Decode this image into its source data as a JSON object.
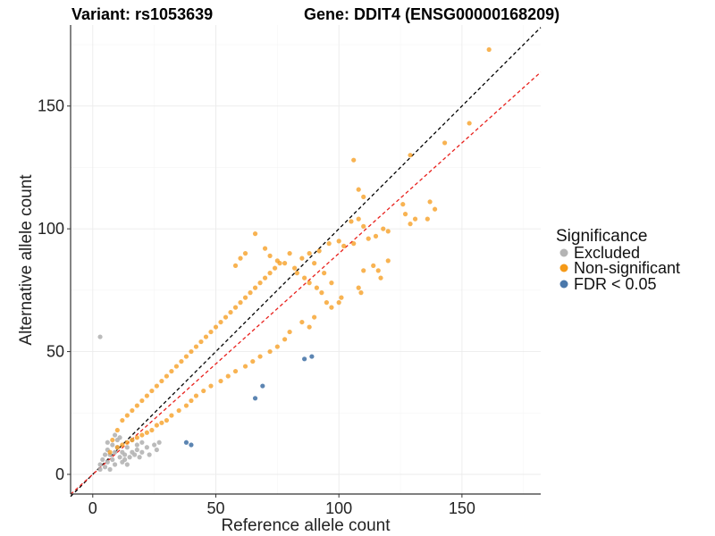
{
  "chart_data": {
    "type": "scatter",
    "title_variant": "Variant: rs1053639",
    "title_gene": "Gene: DDIT4 (ENSG00000168209)",
    "xlabel": "Reference allele count",
    "ylabel": "Alternative allele count",
    "xlim": [
      -9,
      182
    ],
    "ylim": [
      -8,
      183
    ],
    "x_ticks": [
      0,
      50,
      100,
      150
    ],
    "y_ticks": [
      0,
      50,
      100,
      150
    ],
    "legend": {
      "title": "Significance",
      "entries": [
        {
          "label": "Excluded",
          "color": "#b4b4b4"
        },
        {
          "label": "Non-significant",
          "color": "#f59a18"
        },
        {
          "label": "FDR < 0.05",
          "color": "#4a78aa"
        }
      ]
    },
    "reference_lines": [
      {
        "name": "identity",
        "slope": 1.0,
        "intercept": 0,
        "color": "#000000"
      },
      {
        "name": "fit",
        "slope": 0.9,
        "intercept": 0,
        "color": "#e8201c"
      }
    ],
    "series": [
      {
        "name": "Excluded",
        "color": "#b4b4b4",
        "points": [
          [
            3,
            56
          ],
          [
            3,
            2
          ],
          [
            3,
            4
          ],
          [
            4,
            6
          ],
          [
            5,
            3
          ],
          [
            5,
            8
          ],
          [
            6,
            10
          ],
          [
            6,
            5
          ],
          [
            7,
            2
          ],
          [
            7,
            8
          ],
          [
            8,
            12
          ],
          [
            8,
            6
          ],
          [
            9,
            4
          ],
          [
            9,
            9
          ],
          [
            10,
            14
          ],
          [
            10,
            11
          ],
          [
            11,
            7
          ],
          [
            12,
            5
          ],
          [
            12,
            9
          ],
          [
            13,
            8
          ],
          [
            14,
            11
          ],
          [
            15,
            7
          ],
          [
            16,
            9
          ],
          [
            17,
            8
          ],
          [
            18,
            10
          ],
          [
            19,
            7
          ],
          [
            20,
            9
          ],
          [
            22,
            11
          ],
          [
            23,
            8
          ],
          [
            25,
            12
          ],
          [
            26,
            10
          ],
          [
            27,
            13
          ],
          [
            9,
            16
          ],
          [
            11,
            15
          ],
          [
            14,
            4
          ],
          [
            16,
            14
          ],
          [
            6,
            13
          ],
          [
            20,
            13
          ],
          [
            13,
            6
          ],
          [
            18,
            12
          ]
        ]
      },
      {
        "name": "FDR < 0.05",
        "color": "#4a78aa",
        "points": [
          [
            38,
            13
          ],
          [
            40,
            12
          ],
          [
            66,
            31
          ],
          [
            69,
            36
          ],
          [
            86,
            47
          ],
          [
            89,
            48
          ]
        ]
      },
      {
        "name": "Non-significant",
        "color": "#f59a18",
        "points": [
          [
            161,
            173
          ],
          [
            153,
            143
          ],
          [
            143,
            135
          ],
          [
            129,
            130
          ],
          [
            106,
            128
          ],
          [
            110,
            113
          ],
          [
            108,
            116
          ],
          [
            126,
            110
          ],
          [
            127,
            106
          ],
          [
            137,
            111
          ],
          [
            139,
            108
          ],
          [
            131,
            104
          ],
          [
            129,
            102
          ],
          [
            136,
            104
          ],
          [
            105,
            103
          ],
          [
            108,
            104
          ],
          [
            110,
            101
          ],
          [
            118,
            100
          ],
          [
            120,
            99
          ],
          [
            115,
            97
          ],
          [
            112,
            96
          ],
          [
            100,
            95
          ],
          [
            102,
            93
          ],
          [
            106,
            94
          ],
          [
            96,
            94
          ],
          [
            92,
            91
          ],
          [
            120,
            87
          ],
          [
            114,
            85
          ],
          [
            116,
            83
          ],
          [
            110,
            83
          ],
          [
            117,
            80
          ],
          [
            108,
            76
          ],
          [
            109,
            74
          ],
          [
            100,
            70
          ],
          [
            101,
            72
          ],
          [
            97,
            78
          ],
          [
            94,
            82
          ],
          [
            90,
            86
          ],
          [
            88,
            90
          ],
          [
            85,
            88
          ],
          [
            82,
            84
          ],
          [
            66,
            98
          ],
          [
            62,
            90
          ],
          [
            60,
            88
          ],
          [
            58,
            85
          ],
          [
            70,
            92
          ],
          [
            72,
            89
          ],
          [
            75,
            87
          ],
          [
            78,
            86
          ],
          [
            80,
            90
          ],
          [
            83,
            82
          ],
          [
            86,
            80
          ],
          [
            88,
            78
          ],
          [
            91,
            76
          ],
          [
            93,
            74
          ],
          [
            95,
            70
          ],
          [
            97,
            68
          ],
          [
            90,
            64
          ],
          [
            85,
            62
          ],
          [
            88,
            60
          ],
          [
            80,
            58
          ],
          [
            78,
            55
          ],
          [
            75,
            52
          ],
          [
            72,
            50
          ],
          [
            68,
            48
          ],
          [
            65,
            46
          ],
          [
            62,
            44
          ],
          [
            58,
            42
          ],
          [
            55,
            40
          ],
          [
            52,
            38
          ],
          [
            48,
            36
          ],
          [
            45,
            34
          ],
          [
            42,
            32
          ],
          [
            40,
            30
          ],
          [
            38,
            28
          ],
          [
            35,
            26
          ],
          [
            32,
            24
          ],
          [
            30,
            22
          ],
          [
            28,
            21
          ],
          [
            26,
            20
          ],
          [
            24,
            18
          ],
          [
            22,
            17
          ],
          [
            20,
            16
          ],
          [
            18,
            15
          ],
          [
            16,
            14
          ],
          [
            14,
            13
          ],
          [
            12,
            12
          ],
          [
            10,
            11
          ],
          [
            7,
            9
          ],
          [
            8,
            14
          ],
          [
            10,
            18
          ],
          [
            12,
            22
          ],
          [
            14,
            24
          ],
          [
            16,
            26
          ],
          [
            18,
            28
          ],
          [
            20,
            30
          ],
          [
            22,
            32
          ],
          [
            24,
            34
          ],
          [
            26,
            36
          ],
          [
            28,
            38
          ],
          [
            30,
            40
          ],
          [
            32,
            42
          ],
          [
            34,
            44
          ],
          [
            36,
            46
          ],
          [
            38,
            48
          ],
          [
            40,
            50
          ],
          [
            42,
            52
          ],
          [
            44,
            54
          ],
          [
            46,
            56
          ],
          [
            48,
            58
          ],
          [
            50,
            60
          ],
          [
            52,
            62
          ],
          [
            54,
            64
          ],
          [
            56,
            66
          ],
          [
            58,
            68
          ],
          [
            60,
            70
          ],
          [
            62,
            72
          ],
          [
            64,
            74
          ],
          [
            66,
            76
          ],
          [
            68,
            78
          ],
          [
            70,
            80
          ],
          [
            72,
            82
          ],
          [
            74,
            84
          ],
          [
            76,
            86
          ]
        ]
      }
    ]
  }
}
